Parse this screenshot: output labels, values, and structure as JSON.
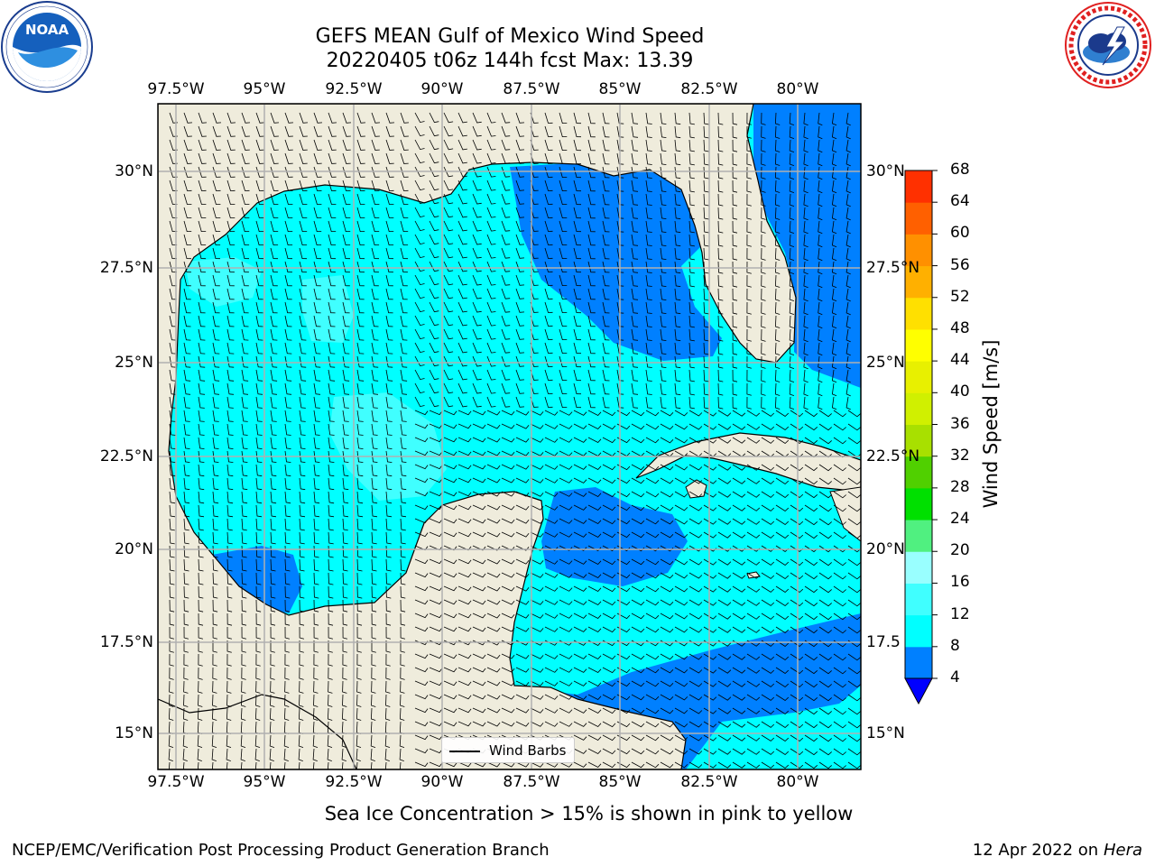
{
  "title": {
    "line1": "GEFS MEAN Gulf of Mexico Wind Speed",
    "line2": "20220405 t06z 144h fcst   Max: 13.39"
  },
  "logos": {
    "noaa_text": "NOAA",
    "noaa_ring": "NATIONAL OCEANIC AND ATMOSPHERIC ADMINISTRATION · U.S. DEPARTMENT OF COMMERCE",
    "nws_ring": "NATIONAL WEATHER SERVICE"
  },
  "map": {
    "lon_labels_top": [
      "97.5°W",
      "95°W",
      "92.5°W",
      "90°W",
      "87.5°W",
      "85°W",
      "82.5°W",
      "80°W"
    ],
    "lon_labels_bottom": [
      "97.5°W",
      "95°W",
      "92.5°W",
      "90°W",
      "87.5°W",
      "85°W",
      "82.5°W",
      "80°W"
    ],
    "lat_labels_left": [
      "30°N",
      "27.5°N",
      "25°N",
      "22.5°N",
      "20°N",
      "17.5°N",
      "15°N"
    ],
    "lat_labels_right": [
      "30°N",
      "27.5°N",
      "25°N",
      "22.5°N",
      "20°N",
      "17.5",
      "15°N"
    ],
    "legend_label": "Wind Barbs",
    "colors": {
      "land": "#efecdc",
      "grid": "#b0b0b0",
      "ocean_4_8": "#0080ff",
      "ocean_8_12": "#00ffff",
      "ocean_12_16": "#40ffff",
      "ocean_lt4": "#0000ff"
    }
  },
  "colorbar": {
    "label": "Wind Speed [m/s]",
    "ticks": [
      "4",
      "8",
      "12",
      "16",
      "20",
      "24",
      "28",
      "32",
      "36",
      "40",
      "44",
      "48",
      "52",
      "56",
      "60",
      "64",
      "68"
    ],
    "colors": [
      "#0080ff",
      "#00ffff",
      "#40ffff",
      "#99ffff",
      "#50f080",
      "#00e000",
      "#50d000",
      "#a8e000",
      "#d0f000",
      "#e8f000",
      "#ffff00",
      "#ffe000",
      "#ffb000",
      "#ff9000",
      "#ff6000",
      "#ff3000",
      "#ff0000"
    ],
    "under_color": "#0000ff"
  },
  "subtitle": "Sea Ice Concentration > 15% is shown in pink to yellow",
  "footer": {
    "left": "NCEP/EMC/Verification Post Processing Product Generation Branch",
    "date": "12 Apr 2022 on ",
    "machine": "Hera"
  }
}
